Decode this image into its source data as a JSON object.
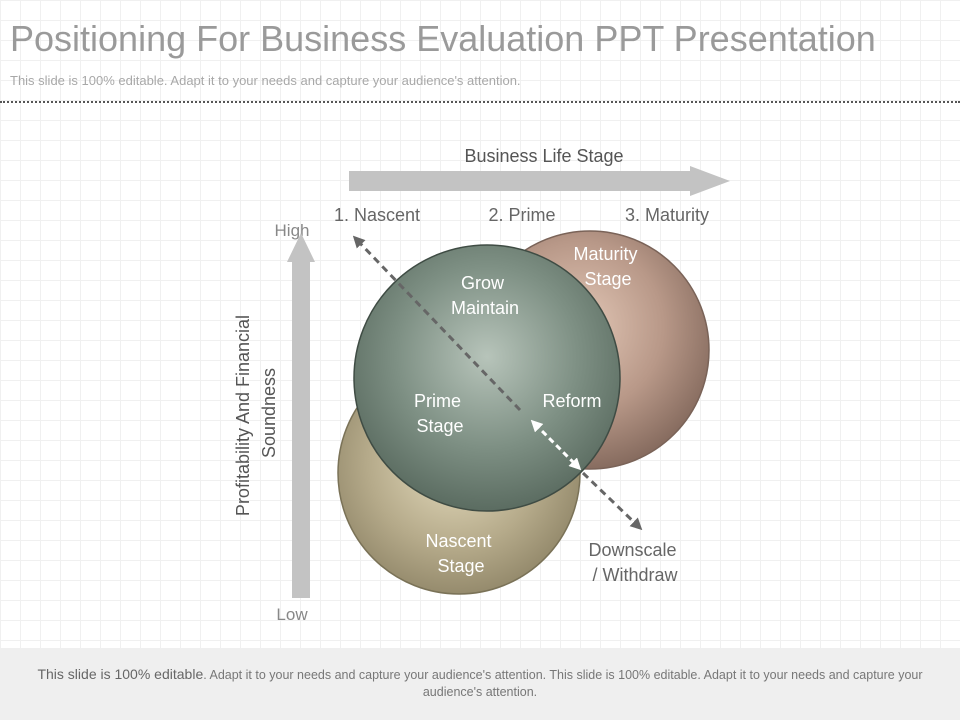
{
  "header": {
    "title": "Positioning For Business Evaluation PPT Presentation",
    "subtitle": "This slide is 100% editable. Adapt it to your needs and capture your audience's attention."
  },
  "diagram": {
    "x_axis_label": "Business Life Stage",
    "stages": [
      "1. Nascent",
      "2. Prime",
      "3. Maturity"
    ],
    "y_axis_label_line1": "Profitability And Financial",
    "y_axis_label_line2": "Soundness",
    "y_high": "High",
    "y_low": "Low",
    "circles": {
      "maturity": {
        "line1": "Maturity",
        "line2": "Stage",
        "color": "#a98b7c"
      },
      "nascent": {
        "line1": "Nascent",
        "line2": "Stage",
        "color": "#9e9478"
      },
      "prime": {
        "color": "#6d7f74"
      }
    },
    "prime_labels": {
      "grow": "Grow",
      "maintain": "Maintain",
      "prime_line1": "Prime",
      "prime_line2": "Stage",
      "reform": "Reform"
    },
    "downscale_line1": "Downscale",
    "downscale_line2": "/ Withdraw"
  },
  "footer": {
    "lead": "This slide is 100% editable",
    "text": ". Adapt it to your needs and capture your audience's attention. This slide is 100% editable. Adapt it to your needs and capture your audience's attention."
  }
}
